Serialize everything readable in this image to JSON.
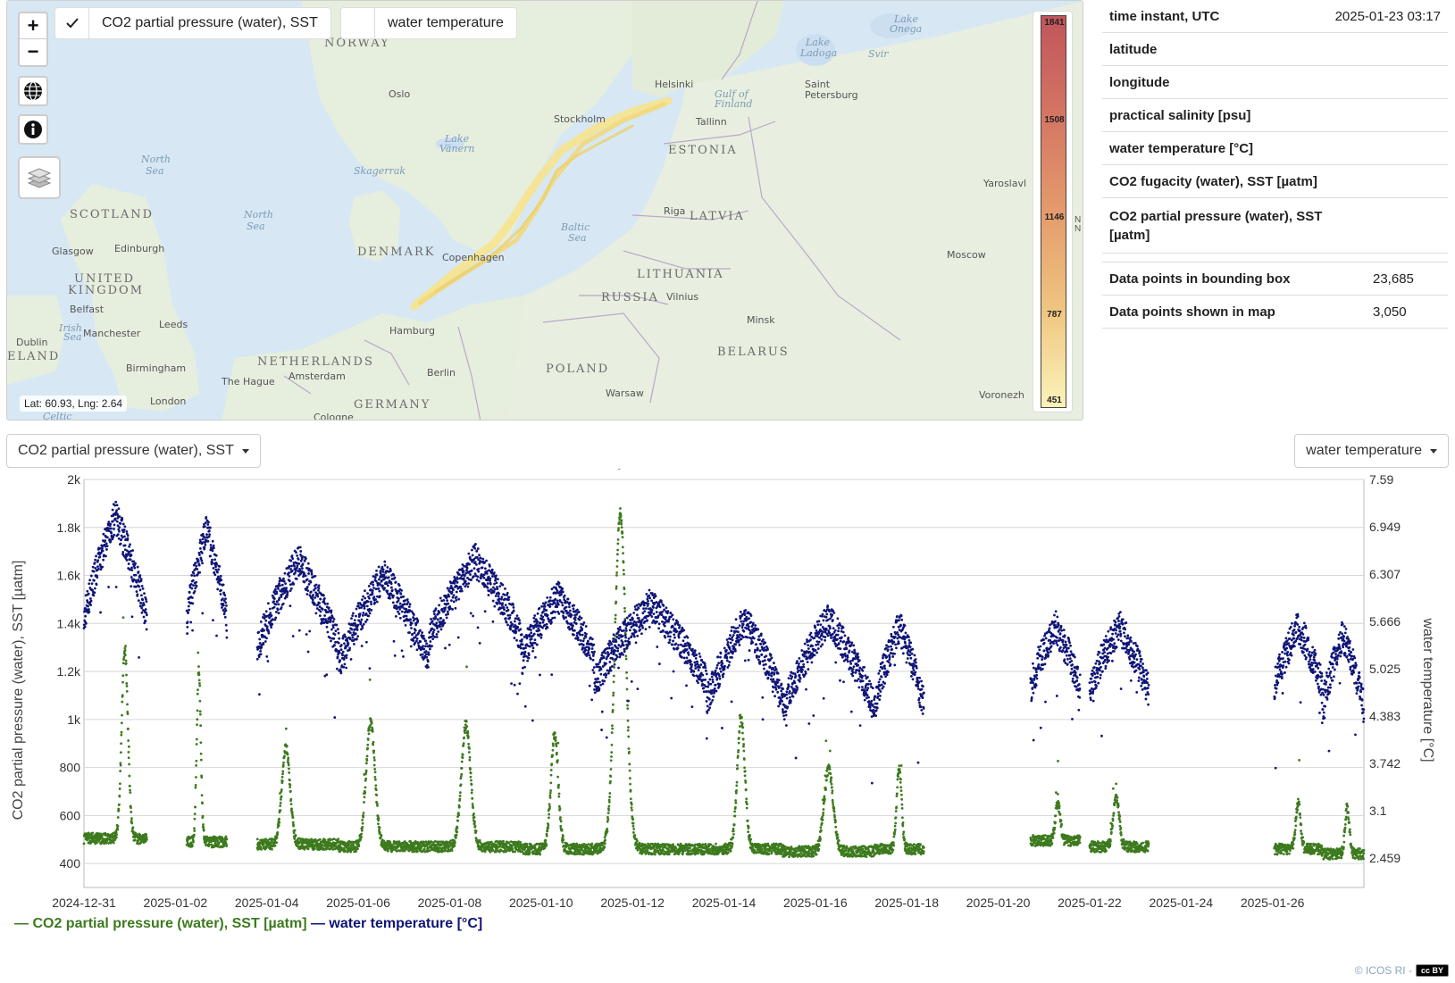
{
  "map": {
    "zoom_in": "+",
    "zoom_out": "−",
    "toggles": [
      {
        "label": "CO2 partial pressure (water), SST",
        "checked": true
      },
      {
        "label": "water temperature",
        "checked": false
      }
    ],
    "latlng": "Lat: 60.93, Lng: 2.64",
    "legend_ticks": [
      "1841",
      "1508",
      "1146",
      "787",
      "451"
    ],
    "legend_side_letters": "N\nN",
    "labels": {
      "countries": [
        "NORWAY",
        "SCOTLAND",
        "UNITED",
        "KINGDOM",
        "DENMARK",
        "ESTONIA",
        "LATVIA",
        "LITHUANIA",
        "RUSSIA",
        "POLAND",
        "BELARUS",
        "NETHERLANDS",
        "GERMANY",
        "ELAND"
      ],
      "cities": [
        "Oslo",
        "Stockholm",
        "Helsinki",
        "Tallinn",
        "Saint",
        "Petersburg",
        "Riga",
        "Vilnius",
        "Minsk",
        "Copenhagen",
        "Hamburg",
        "Berlin",
        "Warsaw",
        "Amsterdam",
        "The Hague",
        "London",
        "Birmingham",
        "Manchester",
        "Leeds",
        "Dublin",
        "Belfast",
        "Glasgow",
        "Edinburgh",
        "Yaroslavl",
        "Moscow",
        "Voronezh",
        "Cologne"
      ],
      "seas": [
        "North",
        "Sea",
        "North",
        "Sea",
        "Skagerrak",
        "Lake",
        "Vänern",
        "Baltic",
        "Sea",
        "Gulf of",
        "Finland",
        "Lake",
        "Ladoga",
        "Lake",
        "Onega",
        "Svir",
        "Irish",
        "Sea",
        "Celtic"
      ]
    }
  },
  "info": {
    "rows": [
      {
        "key": "time instant, UTC",
        "value": "2025-01-23 03:17"
      },
      {
        "key": "latitude",
        "value": ""
      },
      {
        "key": "longitude",
        "value": ""
      },
      {
        "key": "practical salinity [psu]",
        "value": ""
      },
      {
        "key": "water temperature [°C]",
        "value": ""
      },
      {
        "key": "CO2 fugacity (water), SST [µatm]",
        "value": ""
      },
      {
        "key": "CO2 partial pressure (water), SST [µatm]",
        "value": ""
      }
    ],
    "stats": [
      {
        "key": "Data points in bounding box",
        "value": "23,685"
      },
      {
        "key": "Data points shown in map",
        "value": "3,050"
      }
    ]
  },
  "controls": {
    "left_select": "CO2 partial pressure (water), SST",
    "right_select": "water temperature"
  },
  "chart_data": {
    "type": "scatter",
    "title": "",
    "ylabel_left": "CO2 partial pressure (water), SST [µatm]",
    "ylabel_right": "water temperature [°C]",
    "x_ticks": [
      "2024-12-31",
      "2025-01-02",
      "2025-01-04",
      "2025-01-06",
      "2025-01-08",
      "2025-01-10",
      "2025-01-12",
      "2025-01-14",
      "2025-01-16",
      "2025-01-18",
      "2025-01-20",
      "2025-01-22",
      "2025-01-24",
      "2025-01-26"
    ],
    "xlim": [
      "2024-12-31",
      "2025-01-28"
    ],
    "y_left_ticks": [
      "2k",
      "1.8k",
      "1.6k",
      "1.4k",
      "1.2k",
      "1k",
      "800",
      "600",
      "400"
    ],
    "y_left_ticks_values": [
      2000,
      1800,
      1600,
      1400,
      1200,
      1000,
      800,
      600,
      400
    ],
    "ylim_left": [
      300,
      2000
    ],
    "y_right_ticks": [
      "7.59",
      "6.949",
      "6.307",
      "5.666",
      "5.025",
      "4.383",
      "3.742",
      "3.1",
      "2.459"
    ],
    "ylim_right": [
      2.06,
      7.59
    ],
    "grid": true,
    "legend_placement": "bottom-left",
    "series": [
      {
        "name": "CO2 partial pressure (water), SST [µatm]",
        "color": "#3d7a1e",
        "axis": "left"
      },
      {
        "name": "water temperature [°C]",
        "color": "#0f1577",
        "axis": "right"
      }
    ],
    "segments": [
      {
        "start": "2024-12-31T00:00",
        "end": "2025-01-01T09:00",
        "co2_base": 505,
        "co2_peak": 1290,
        "peak_at": 0.65,
        "temp_base": 4.9,
        "temp_peak": 7.1
      },
      {
        "start": "2025-01-02T06:00",
        "end": "2025-01-03T03:00",
        "co2_base": 490,
        "co2_peak": 1210,
        "peak_at": 0.3,
        "temp_base": 5.0,
        "temp_peak": 6.9
      },
      {
        "start": "2025-01-03T19:00",
        "end": "2025-01-05T14:00",
        "co2_base": 480,
        "co2_peak": 880,
        "peak_at": 0.35,
        "temp_base": 4.6,
        "temp_peak": 6.5
      },
      {
        "start": "2025-01-05T14:00",
        "end": "2025-01-07T13:00",
        "co2_base": 470,
        "co2_peak": 990,
        "peak_at": 0.35,
        "temp_base": 4.4,
        "temp_peak": 6.3
      },
      {
        "start": "2025-01-07T13:00",
        "end": "2025-01-09T14:00",
        "co2_base": 470,
        "co2_peak": 980,
        "peak_at": 0.4,
        "temp_base": 4.8,
        "temp_peak": 6.5
      },
      {
        "start": "2025-01-09T14:00",
        "end": "2025-01-11T04:00",
        "co2_base": 460,
        "co2_peak": 940,
        "peak_at": 0.45,
        "temp_base": 4.7,
        "temp_peak": 6.0
      },
      {
        "start": "2025-01-11T04:00",
        "end": "2025-01-13T15:00",
        "co2_base": 460,
        "co2_peak": 1860,
        "peak_at": 0.23,
        "temp_base": 4.2,
        "temp_peak": 5.9
      },
      {
        "start": "2025-01-13T15:00",
        "end": "2025-01-15T07:00",
        "co2_base": 460,
        "co2_peak": 1010,
        "peak_at": 0.45,
        "temp_base": 3.9,
        "temp_peak": 5.7
      },
      {
        "start": "2025-01-15T07:00",
        "end": "2025-01-17T07:00",
        "co2_base": 450,
        "co2_peak": 790,
        "peak_at": 0.5,
        "temp_base": 3.8,
        "temp_peak": 5.7
      },
      {
        "start": "2025-01-17T07:00",
        "end": "2025-01-18T09:00",
        "co2_base": 460,
        "co2_peak": 800,
        "peak_at": 0.5,
        "temp_base": 3.9,
        "temp_peak": 5.6
      },
      {
        "start": "2025-01-20T17:00",
        "end": "2025-01-21T19:00",
        "co2_base": 495,
        "co2_peak": 650,
        "peak_at": 0.55,
        "temp_base": 4.3,
        "temp_peak": 5.6
      },
      {
        "start": "2025-01-22T00:00",
        "end": "2025-01-23T07:00",
        "co2_base": 470,
        "co2_peak": 680,
        "peak_at": 0.45,
        "temp_base": 4.2,
        "temp_peak": 5.6
      },
      {
        "start": "2025-01-26T01:00",
        "end": "2025-01-27T02:00",
        "co2_base": 460,
        "co2_peak": 650,
        "peak_at": 0.5,
        "temp_base": 4.3,
        "temp_peak": 5.6
      },
      {
        "start": "2025-01-27T02:00",
        "end": "2025-01-28T00:00",
        "co2_base": 440,
        "co2_peak": 630,
        "peak_at": 0.6,
        "temp_base": 3.9,
        "temp_peak": 5.5
      }
    ]
  },
  "chart_legend": {
    "co2": "— CO2 partial pressure (water), SST [µatm]",
    "temp": "— water temperature [°C]"
  },
  "footer": {
    "credit": "© ICOS RI -",
    "license": "cc BY"
  }
}
